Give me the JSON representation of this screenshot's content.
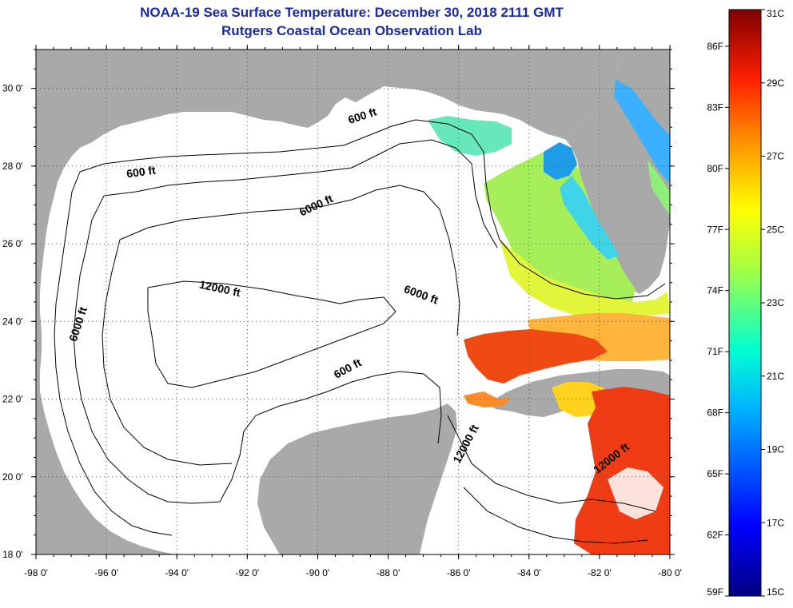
{
  "title": {
    "line1": "NOAA-19 Sea Surface Temperature:  December 30, 2018 2111 GMT",
    "line2": "Rutgers Coastal Ocean Observation Lab"
  },
  "map": {
    "lon_range": [
      -98,
      -80
    ],
    "lat_range": [
      18,
      31
    ],
    "lon_ticks": [
      {
        "value": -98,
        "label": "-98 0'"
      },
      {
        "value": -96,
        "label": "-96 0'"
      },
      {
        "value": -94,
        "label": "-94 0'"
      },
      {
        "value": -92,
        "label": "-92 0'"
      },
      {
        "value": -90,
        "label": "-90 0'"
      },
      {
        "value": -88,
        "label": "-88 0'"
      },
      {
        "value": -86,
        "label": "-86 0'"
      },
      {
        "value": -84,
        "label": "-84 0'"
      },
      {
        "value": -82,
        "label": "-82 0'"
      },
      {
        "value": -80,
        "label": "-80 0'"
      }
    ],
    "lat_ticks": [
      {
        "value": 30,
        "label": "30 0'"
      },
      {
        "value": 28,
        "label": "28 0'"
      },
      {
        "value": 26,
        "label": "26 0'"
      },
      {
        "value": 24,
        "label": "24 0'"
      },
      {
        "value": 22,
        "label": "22 0'"
      },
      {
        "value": 20,
        "label": "20 0'"
      },
      {
        "value": 18,
        "label": "18 0'"
      }
    ],
    "grid": true,
    "colors": {
      "land": "#a9a9a9",
      "water": "#ffffff",
      "contour": "#000000",
      "title": "#1a2aa0"
    },
    "contour_labels": [
      {
        "text": "600 ft",
        "lon": -88.7,
        "lat": 29.2,
        "angle": -18
      },
      {
        "text": "600 ft",
        "lon": -95.0,
        "lat": 27.75,
        "angle": -8
      },
      {
        "text": "6000 ft",
        "lon": -90.0,
        "lat": 26.9,
        "angle": -25
      },
      {
        "text": "12000 ft",
        "lon": -92.8,
        "lat": 24.75,
        "angle": 12
      },
      {
        "text": "6000 ft",
        "lon": -96.7,
        "lat": 23.9,
        "angle": -72
      },
      {
        "text": "6000 ft",
        "lon": -87.1,
        "lat": 24.6,
        "angle": 20
      },
      {
        "text": "600 ft",
        "lon": -89.1,
        "lat": 22.7,
        "angle": -28
      },
      {
        "text": "12000 ft",
        "lon": -85.7,
        "lat": 20.8,
        "angle": -62
      },
      {
        "text": "12000 ft",
        "lon": -81.6,
        "lat": 20.4,
        "angle": -38
      }
    ]
  },
  "colorbar": {
    "celsius_ticks": [
      {
        "value": 31,
        "label": "31C"
      },
      {
        "value": 29,
        "label": "29C"
      },
      {
        "value": 27,
        "label": "27C"
      },
      {
        "value": 25,
        "label": "25C"
      },
      {
        "value": 23,
        "label": "23C"
      },
      {
        "value": 21,
        "label": "21C"
      },
      {
        "value": 19,
        "label": "19C"
      },
      {
        "value": 17,
        "label": "17C"
      },
      {
        "value": 15,
        "label": "15C"
      }
    ],
    "fahrenheit_ticks": [
      {
        "value": 86,
        "label": "86F"
      },
      {
        "value": 83,
        "label": "83F"
      },
      {
        "value": 80,
        "label": "80F"
      },
      {
        "value": 77,
        "label": "77F"
      },
      {
        "value": 74,
        "label": "74F"
      },
      {
        "value": 71,
        "label": "71F"
      },
      {
        "value": 68,
        "label": "68F"
      },
      {
        "value": 65,
        "label": "65F"
      },
      {
        "value": 62,
        "label": "62F"
      },
      {
        "value": 59,
        "label": "59F"
      }
    ]
  }
}
